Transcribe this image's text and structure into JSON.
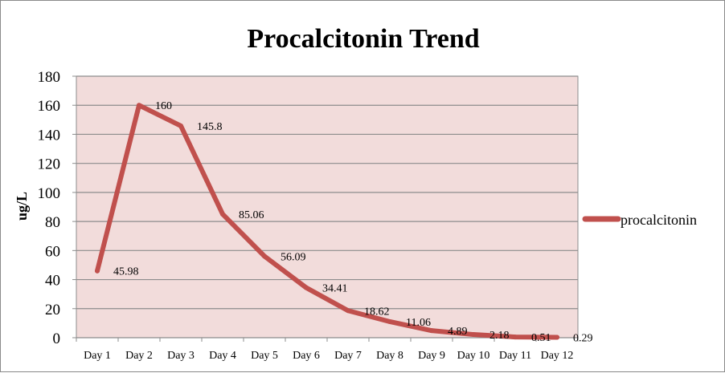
{
  "chart_data": {
    "type": "line",
    "title": "Procalcitonin Trend",
    "xlabel": "",
    "ylabel": "ug/L",
    "categories": [
      "Day 1",
      "Day 2",
      "Day 3",
      "Day 4",
      "Day 5",
      "Day 6",
      "Day 7",
      "Day 8",
      "Day 9",
      "Day 10",
      "Day 11",
      "Day 12"
    ],
    "series": [
      {
        "name": "procalcitonin",
        "values": [
          45.98,
          160,
          145.8,
          85.06,
          56.09,
          34.41,
          18.62,
          11.06,
          4.89,
          2.18,
          0.51,
          0.29
        ],
        "labels": [
          "45.98",
          "160",
          "145.8",
          "85.06",
          "56.09",
          "34.41",
          "18.62",
          "11.06",
          "4.89",
          "2.18",
          "0.51",
          "0.29"
        ],
        "color": "#c0504d"
      }
    ],
    "ylim": [
      0,
      180
    ],
    "yticks": [
      "0",
      "20",
      "40",
      "60",
      "80",
      "100",
      "120",
      "140",
      "160",
      "180"
    ],
    "grid": true,
    "legend": "right",
    "plot_background": "#f2dcdb",
    "gridline_color": "#8c8c8c"
  }
}
